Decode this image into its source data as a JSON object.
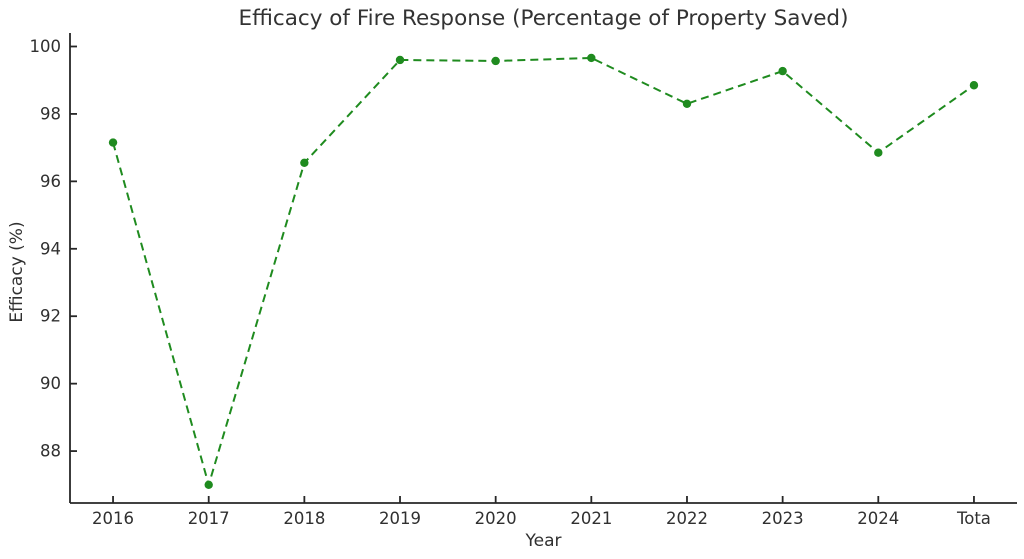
{
  "chart_data": {
    "type": "line",
    "title": "Efficacy of Fire Response (Percentage of Property Saved)",
    "xlabel": "Year",
    "ylabel": "Efficacy (%)",
    "categories": [
      "2016",
      "2017",
      "2018",
      "2019",
      "2020",
      "2021",
      "2022",
      "2023",
      "2024",
      "Tota"
    ],
    "series": [
      {
        "name": "efficacy",
        "values": [
          97.15,
          87.0,
          96.55,
          99.6,
          99.57,
          99.66,
          98.3,
          99.27,
          96.85,
          98.85
        ],
        "color": "#1f8b1f",
        "line_style": "dashed",
        "marker": "circle"
      }
    ],
    "ylim": [
      86.46,
      100.4
    ],
    "yticks": [
      88,
      90,
      92,
      94,
      96,
      98,
      100
    ],
    "grid": false,
    "legend": null,
    "axis_color": "#262626",
    "tick_label_color": "#303030",
    "background_color": "#ffffff"
  }
}
